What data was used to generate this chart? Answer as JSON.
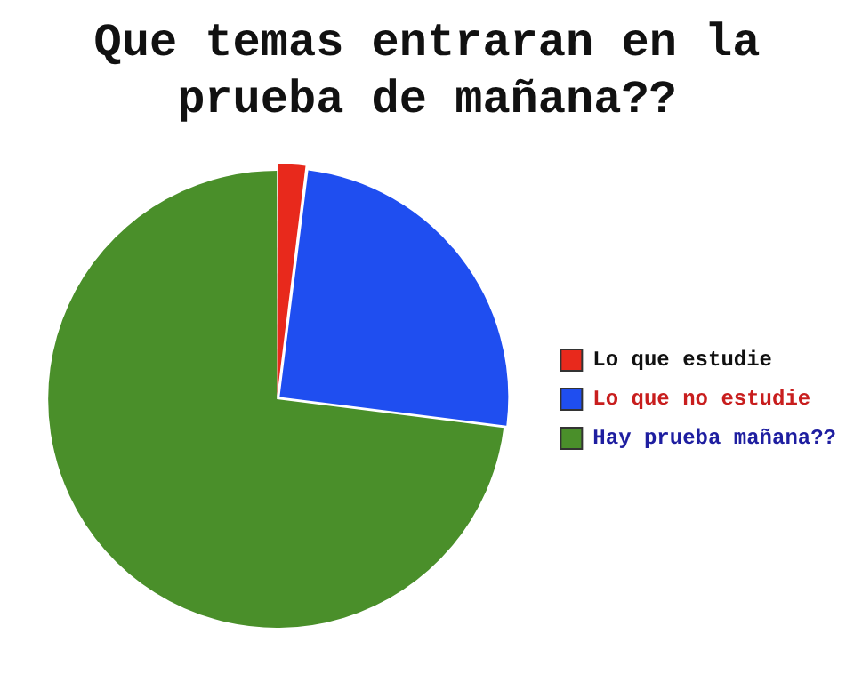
{
  "chart_data": {
    "type": "pie",
    "title": "Que temas entraran en la prueba de mañana??",
    "categories": [
      "Lo que estudie",
      "Lo que no estudie",
      "Hay prueba mañana??"
    ],
    "values": [
      2,
      25,
      73
    ],
    "colors": [
      "#e8291c",
      "#1f4ef0",
      "#4a8f2a"
    ],
    "legend": "right"
  }
}
